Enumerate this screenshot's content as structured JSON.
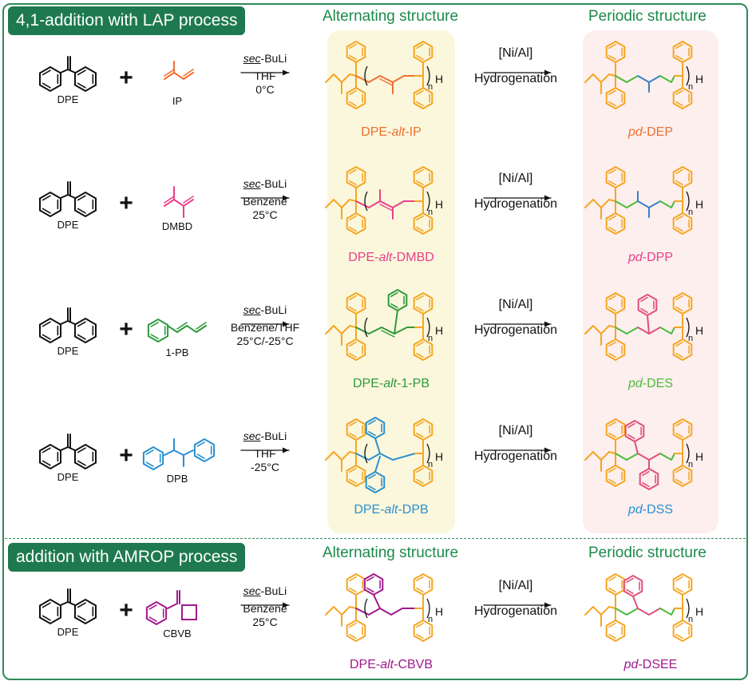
{
  "colors": {
    "green_header": "#1e7a4e",
    "header_text": "#1b8a4a",
    "backbone": "#f5a623",
    "ip": "#f07030",
    "dmbd": "#e8408a",
    "pb": "#2e9a3e",
    "dpb": "#2a8fd0",
    "cbvb": "#a0198c",
    "pd_blue": "#3a80c8",
    "pd_green": "#4cbb3a",
    "pd_pink": "#e0507a",
    "band_yellow": "#fbf7dc",
    "band_pink": "#fcefed"
  },
  "section1": {
    "title": "4,1-addition with LAP process"
  },
  "section2": {
    "title": "addition with AMROP process"
  },
  "headers": {
    "alternating": "Alternating  structure",
    "periodic": "Periodic structure"
  },
  "hydro": {
    "catalyst": "[Ni/Al]",
    "label": "Hydrogenation"
  },
  "rows": [
    {
      "dpe_label": "DPE",
      "monomer_label": "IP",
      "reagent": "sec",
      "reagent_suffix": "-BuLi",
      "solvent": "THF",
      "temp": "0°C",
      "alt_prefix": "DPE-",
      "alt_mid": "alt",
      "alt_suffix": "-IP",
      "alt_color": "#f07030",
      "pd_prefix": "pd",
      "pd_suffix": "-DEP",
      "pd_color": "#f07030",
      "sub": "n",
      "end": "H"
    },
    {
      "dpe_label": "DPE",
      "monomer_label": "DMBD",
      "reagent": "sec",
      "reagent_suffix": "-BuLi",
      "solvent": "Benzene",
      "temp": "25°C",
      "alt_prefix": "DPE-",
      "alt_mid": "alt",
      "alt_suffix": "-DMBD",
      "alt_color": "#e8408a",
      "pd_prefix": "pd",
      "pd_suffix": "-DPP",
      "pd_color": "#e8408a",
      "sub": "n",
      "end": "H"
    },
    {
      "dpe_label": "DPE",
      "monomer_label": "1-PB",
      "reagent": "sec",
      "reagent_suffix": "-BuLi",
      "solvent": "Benzene/THF",
      "temp": "25°C/-25°C",
      "alt_prefix": "DPE-",
      "alt_mid": "alt",
      "alt_suffix": "-1-PB",
      "alt_color": "#2e9a3e",
      "pd_prefix": "pd",
      "pd_suffix": "-DES",
      "pd_color": "#4cbb3a",
      "sub": "n",
      "end": "H"
    },
    {
      "dpe_label": "DPE",
      "monomer_label": "DPB",
      "reagent": "sec",
      "reagent_suffix": "-BuLi",
      "solvent": "THF",
      "temp": "-25°C",
      "alt_prefix": "DPE-",
      "alt_mid": "alt",
      "alt_suffix": "-DPB",
      "alt_color": "#2a8fd0",
      "pd_prefix": "pd",
      "pd_suffix": "-DSS",
      "pd_color": "#2a8fd0",
      "sub": "n",
      "end": "H"
    },
    {
      "dpe_label": "DPE",
      "monomer_label": "CBVB",
      "reagent": "sec",
      "reagent_suffix": "-BuLi",
      "solvent": "Benzene",
      "temp": "25°C",
      "alt_prefix": "DPE-",
      "alt_mid": "alt",
      "alt_suffix": "-CBVB",
      "alt_color": "#a0198c",
      "pd_prefix": "pd",
      "pd_suffix": "-DSEE",
      "pd_color": "#a0198c",
      "sub": "n",
      "end": "H"
    }
  ]
}
